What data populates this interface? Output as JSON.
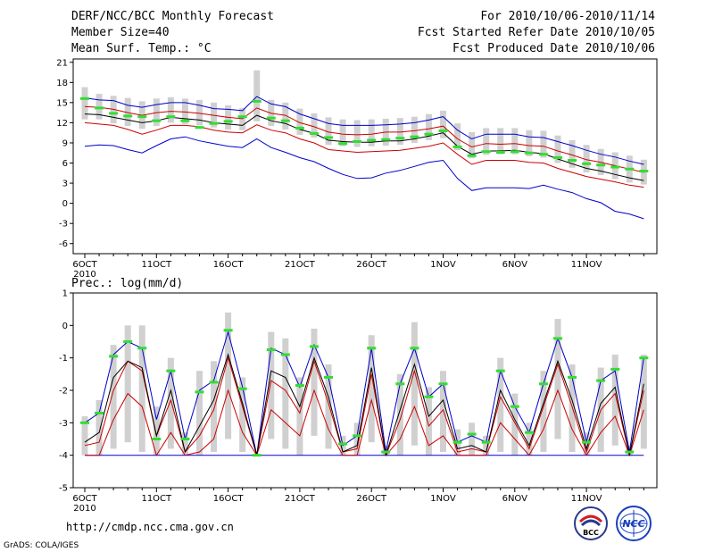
{
  "header": {
    "title": "DERF/NCC/BCC Monthly Forecast",
    "member_size": "Member Size=40",
    "variable": "Mean Surf. Temp.: °C",
    "period": "For 2010/10/06-2010/11/14",
    "start_date": "Fcst Started Refer Date 2010/10/05",
    "produced_date": "Fcst Produced Date 2010/10/06"
  },
  "footer": {
    "url": "http://cmdp.ncc.cma.gov.cn",
    "grads_credit": "GrADS: COLA/IGES",
    "logo_bcc": "BCC",
    "logo_ncc": "NCC"
  },
  "colors": {
    "envelope": "#0000cc",
    "spread": "#cc0000",
    "mean": "#000000",
    "median_marker": "#33dd33",
    "box": "#d0d0d0"
  },
  "chart_data": [
    {
      "type": "box",
      "title": "Mean Surf. Temp.: °C",
      "xlabel": "",
      "ylabel": "°C",
      "ylim": [
        -7.5,
        21.5
      ],
      "yticks": [
        21,
        18,
        15,
        12,
        9,
        6,
        3,
        0,
        -3,
        -6
      ],
      "xtick_labels": [
        "6OCT",
        "11OCT",
        "16OCT",
        "21OCT",
        "26OCT",
        "1NOV",
        "6NOV",
        "11NOV"
      ],
      "xtick_sublabel": "2010",
      "days": 40,
      "series": [
        {
          "name": "max",
          "values": [
            8.5,
            8.7,
            8.6,
            8.0,
            7.5,
            8.6,
            9.6,
            9.9,
            9.3,
            8.9,
            8.5,
            8.3,
            9.6,
            8.3,
            7.6,
            6.8,
            6.2,
            5.2,
            4.3,
            3.7,
            3.8,
            4.5,
            4.9,
            5.5,
            6.1,
            6.4,
            3.7,
            1.9,
            2.3,
            2.3,
            2.3,
            2.2,
            2.7,
            2.1,
            1.6,
            0.7,
            0.1,
            -1.2,
            -1.6,
            -2.3
          ]
        },
        {
          "name": "p10",
          "values": [
            12.0,
            11.8,
            11.6,
            11.0,
            10.3,
            10.9,
            11.6,
            11.6,
            11.4,
            10.9,
            10.6,
            10.5,
            11.7,
            10.9,
            10.5,
            9.6,
            9.0,
            8.0,
            7.8,
            7.6,
            7.7,
            7.8,
            7.9,
            8.2,
            8.5,
            9.0,
            7.3,
            5.8,
            6.4,
            6.4,
            6.4,
            6.1,
            6.0,
            5.2,
            4.6,
            4.0,
            3.6,
            3.2,
            2.7,
            2.4
          ]
        },
        {
          "name": "mean",
          "values": [
            13.3,
            13.2,
            12.8,
            12.4,
            12.0,
            12.3,
            12.8,
            12.6,
            12.4,
            12.0,
            11.8,
            11.6,
            13.1,
            12.3,
            11.9,
            11.0,
            10.4,
            9.4,
            9.2,
            9.1,
            9.1,
            9.3,
            9.3,
            9.6,
            10.0,
            10.5,
            8.5,
            7.3,
            7.8,
            7.8,
            7.9,
            7.6,
            7.4,
            6.6,
            5.9,
            5.2,
            4.8,
            4.3,
            3.8,
            3.4
          ]
        },
        {
          "name": "p90",
          "values": [
            14.4,
            14.3,
            14.0,
            13.5,
            13.1,
            13.5,
            13.7,
            13.6,
            13.4,
            13.1,
            12.8,
            12.6,
            14.2,
            13.4,
            13.1,
            12.0,
            11.4,
            10.6,
            10.3,
            10.2,
            10.3,
            10.6,
            10.6,
            10.8,
            11.1,
            11.5,
            9.6,
            8.4,
            8.9,
            8.8,
            8.9,
            8.6,
            8.5,
            7.8,
            7.2,
            6.5,
            6.1,
            5.6,
            5.1,
            4.6
          ]
        },
        {
          "name": "min",
          "values": [
            15.7,
            15.4,
            15.3,
            14.6,
            14.3,
            14.7,
            15.0,
            15.0,
            14.6,
            14.1,
            14.0,
            13.8,
            15.9,
            14.8,
            14.4,
            13.3,
            12.6,
            11.9,
            11.6,
            11.6,
            11.6,
            11.7,
            11.8,
            12.0,
            12.4,
            12.9,
            10.9,
            9.6,
            10.3,
            10.3,
            10.3,
            9.9,
            9.8,
            9.2,
            8.6,
            7.9,
            7.3,
            6.9,
            6.3,
            5.8
          ]
        },
        {
          "name": "box_low",
          "values": [
            12.5,
            12.5,
            11.9,
            11.5,
            11.1,
            11.5,
            12.0,
            11.8,
            11.6,
            11.3,
            11.0,
            10.9,
            12.2,
            11.5,
            11.0,
            10.2,
            9.8,
            8.7,
            8.5,
            8.4,
            8.5,
            8.6,
            8.7,
            9.0,
            9.4,
            9.7,
            7.9,
            6.7,
            7.2,
            7.3,
            7.3,
            7.0,
            6.8,
            6.0,
            5.3,
            4.6,
            4.2,
            3.6,
            3.1,
            2.8
          ]
        },
        {
          "name": "box_high",
          "values": [
            17.3,
            16.3,
            16.0,
            15.7,
            15.2,
            15.6,
            15.8,
            15.6,
            15.4,
            15.0,
            14.6,
            14.2,
            19.8,
            15.4,
            15.0,
            14.1,
            13.4,
            12.8,
            12.5,
            12.4,
            12.5,
            12.6,
            12.7,
            12.9,
            13.3,
            13.8,
            11.9,
            10.6,
            11.2,
            11.2,
            11.2,
            10.9,
            10.8,
            10.1,
            9.4,
            8.7,
            8.1,
            7.6,
            7.1,
            6.5
          ]
        },
        {
          "name": "median",
          "values": [
            15.6,
            14.2,
            13.4,
            13.0,
            12.9,
            12.3,
            12.9,
            12.3,
            11.3,
            11.9,
            12.2,
            12.9,
            15.2,
            12.7,
            12.3,
            11.2,
            10.4,
            9.8,
            8.9,
            9.2,
            9.4,
            9.5,
            9.7,
            9.9,
            10.3,
            10.8,
            8.4,
            7.1,
            7.7,
            7.6,
            7.7,
            7.5,
            7.3,
            6.8,
            6.4,
            5.9,
            5.7,
            5.4,
            5.1,
            4.8
          ]
        }
      ]
    },
    {
      "type": "box",
      "title": "Prec.: log(mm/d)",
      "xlabel": "",
      "ylabel": "log(mm/d)",
      "ylim": [
        -5,
        1
      ],
      "yticks": [
        1,
        0,
        -1,
        -2,
        -3,
        -4,
        -5
      ],
      "xtick_labels": [
        "6OCT",
        "11OCT",
        "16OCT",
        "21OCT",
        "26OCT",
        "1NOV",
        "6NOV",
        "11NOV"
      ],
      "xtick_sublabel": "2010",
      "days": 40,
      "series": [
        {
          "name": "max",
          "values": [
            -3.0,
            -2.7,
            -0.9,
            -0.5,
            -0.7,
            -2.9,
            -1.4,
            -3.5,
            -2.0,
            -1.7,
            -0.2,
            -1.9,
            -4.0,
            -0.7,
            -0.9,
            -1.9,
            -0.6,
            -1.6,
            -3.7,
            -3.4,
            -0.7,
            -3.9,
            -1.8,
            -0.7,
            -2.2,
            -1.8,
            -3.6,
            -3.4,
            -3.6,
            -1.4,
            -2.5,
            -3.3,
            -1.8,
            -0.4,
            -1.6,
            -3.6,
            -1.7,
            -1.4,
            -3.9,
            -1.0
          ]
        },
        {
          "name": "p10",
          "values": [
            -3.7,
            -3.6,
            -2.0,
            -1.1,
            -1.4,
            -3.4,
            -2.3,
            -3.9,
            -3.4,
            -2.6,
            -1.0,
            -2.5,
            -4.0,
            -1.7,
            -2.0,
            -2.7,
            -1.1,
            -2.4,
            -3.9,
            -3.8,
            -1.5,
            -4.0,
            -2.9,
            -1.4,
            -3.1,
            -2.6,
            -3.9,
            -3.8,
            -3.9,
            -2.2,
            -3.0,
            -3.8,
            -2.5,
            -1.2,
            -2.5,
            -3.9,
            -2.6,
            -2.1,
            -4.0,
            -2.0
          ]
        },
        {
          "name": "mean",
          "values": [
            -3.6,
            -3.3,
            -1.6,
            -1.1,
            -1.3,
            -3.4,
            -2.0,
            -3.9,
            -3.1,
            -2.3,
            -0.9,
            -2.4,
            -4.0,
            -1.4,
            -1.6,
            -2.5,
            -1.0,
            -2.2,
            -3.9,
            -3.7,
            -1.3,
            -4.0,
            -2.6,
            -1.2,
            -2.8,
            -2.3,
            -3.8,
            -3.7,
            -3.9,
            -2.0,
            -2.9,
            -3.7,
            -2.4,
            -1.1,
            -2.3,
            -3.8,
            -2.4,
            -1.9,
            -4.0,
            -1.8
          ]
        },
        {
          "name": "p90",
          "values": [
            -4.0,
            -4.0,
            -2.9,
            -2.1,
            -2.5,
            -4.0,
            -3.3,
            -4.0,
            -3.9,
            -3.5,
            -2.0,
            -3.3,
            -4.0,
            -2.6,
            -3.0,
            -3.4,
            -2.0,
            -3.2,
            -4.0,
            -4.0,
            -2.3,
            -4.0,
            -3.5,
            -2.5,
            -3.7,
            -3.4,
            -4.0,
            -4.0,
            -4.0,
            -3.0,
            -3.5,
            -4.0,
            -3.2,
            -2.0,
            -3.2,
            -4.0,
            -3.3,
            -2.8,
            -4.0,
            -2.6
          ]
        },
        {
          "name": "min",
          "values": [
            -4.0,
            -4.0,
            -4.0,
            -4.0,
            -4.0,
            -4.0,
            -4.0,
            -4.0,
            -4.0,
            -4.0,
            -4.0,
            -4.0,
            -4.0,
            -4.0,
            -4.0,
            -4.0,
            -4.0,
            -4.0,
            -4.0,
            -4.0,
            -4.0,
            -4.0,
            -4.0,
            -4.0,
            -4.0,
            -4.0,
            -4.0,
            -4.0,
            -4.0,
            -4.0,
            -4.0,
            -4.0,
            -4.0,
            -4.0,
            -4.0,
            -4.0,
            -4.0,
            -4.0,
            -4.0,
            -4.0
          ]
        },
        {
          "name": "box_low",
          "values": [
            -4.0,
            -4.0,
            -3.8,
            -3.6,
            -3.9,
            -4.0,
            -3.8,
            -4.0,
            -4.0,
            -3.9,
            -3.5,
            -3.9,
            -4.0,
            -3.5,
            -3.8,
            -4.0,
            -3.4,
            -3.8,
            -4.0,
            -4.0,
            -3.6,
            -4.0,
            -4.0,
            -3.7,
            -4.0,
            -3.9,
            -4.0,
            -4.0,
            -4.0,
            -3.9,
            -4.0,
            -4.0,
            -3.9,
            -3.5,
            -3.9,
            -4.0,
            -3.9,
            -3.7,
            -4.0,
            -3.8
          ]
        },
        {
          "name": "box_high",
          "values": [
            -2.8,
            -2.3,
            -0.6,
            0.0,
            0.0,
            -2.5,
            -1.0,
            -3.3,
            -1.4,
            -1.1,
            0.4,
            -1.6,
            -4.0,
            -0.2,
            -0.4,
            -1.6,
            -0.1,
            -1.2,
            -3.4,
            -3.0,
            -0.3,
            -3.7,
            -1.5,
            0.1,
            -1.9,
            -1.4,
            -3.2,
            -3.0,
            -3.4,
            -1.0,
            -2.1,
            -3.0,
            -1.4,
            0.2,
            -1.2,
            -3.3,
            -1.3,
            -0.9,
            -3.7,
            -0.9
          ]
        },
        {
          "name": "median",
          "values": [
            -3.0,
            -2.7,
            -0.95,
            -0.5,
            -0.7,
            -3.5,
            -1.4,
            -3.5,
            -2.05,
            -1.75,
            -0.15,
            -1.95,
            -4.0,
            -0.75,
            -0.9,
            -1.85,
            -0.65,
            -1.6,
            -3.65,
            -3.4,
            -0.7,
            -3.9,
            -1.8,
            -0.7,
            -2.2,
            -1.8,
            -3.6,
            -3.35,
            -3.6,
            -1.4,
            -2.5,
            -3.3,
            -1.8,
            -0.4,
            -1.6,
            -3.6,
            -1.7,
            -1.35,
            -3.9,
            -1.0
          ]
        }
      ]
    }
  ]
}
